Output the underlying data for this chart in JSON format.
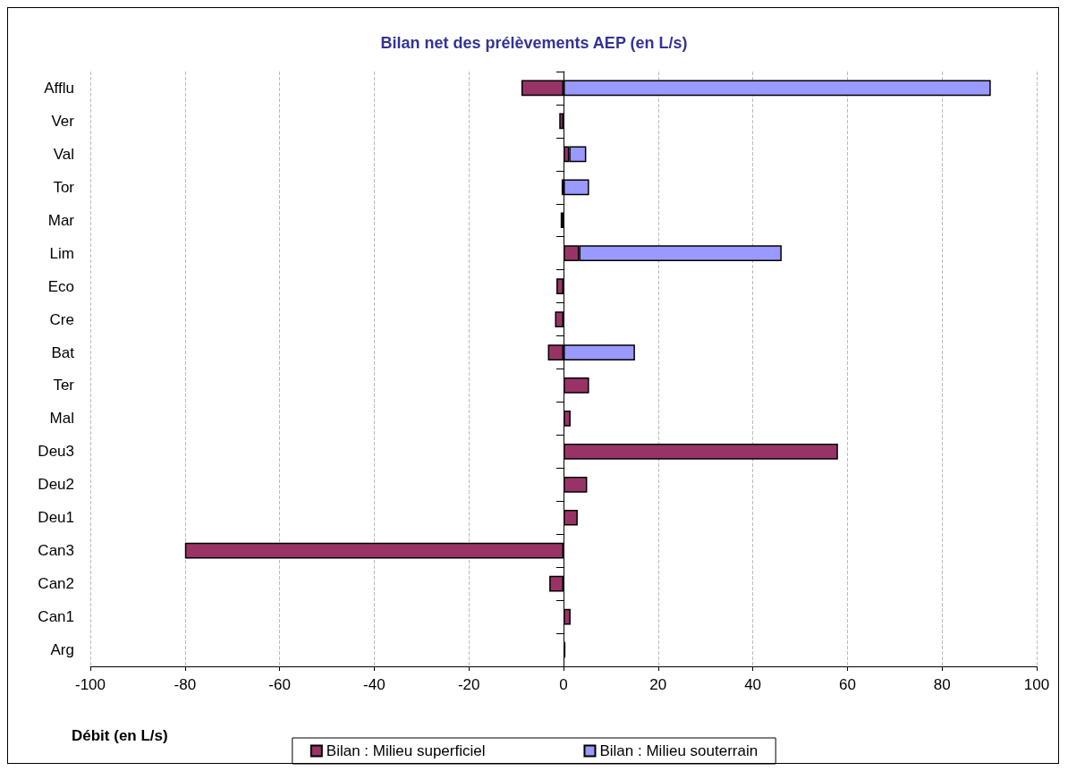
{
  "chart_data": {
    "type": "bar",
    "orientation": "horizontal",
    "stacked": true,
    "title": "Bilan net des prélèvements AEP (en L/s)",
    "xlabel": "Débit (en L/s)",
    "categories": [
      "Afflu",
      "Ver",
      "Val",
      "Tor",
      "Mar",
      "Lim",
      "Eco",
      "Cre",
      "Bat",
      "Ter",
      "Mal",
      "Deu3",
      "Deu2",
      "Deu1",
      "Can3",
      "Can2",
      "Can1",
      "Arg"
    ],
    "series": [
      {
        "name": "Bilan : Milieu superficiel",
        "color": "#993366",
        "values": [
          -8.9,
          -0.9,
          1.2,
          -0.4,
          -0.6,
          3.3,
          -1.5,
          -1.8,
          -3.3,
          5.4,
          1.5,
          58,
          5.0,
          3.0,
          -80,
          -3.0,
          1.5,
          0.4
        ]
      },
      {
        "name": "Bilan : Milieu souterrain",
        "color": "#9999ff",
        "values": [
          90.3,
          null,
          3.6,
          5.4,
          null,
          42.8,
          null,
          null,
          15.1,
          null,
          null,
          null,
          null,
          null,
          null,
          null,
          null,
          null
        ]
      }
    ],
    "xlim": [
      -100,
      100
    ],
    "xticks": [
      -100,
      -80,
      -60,
      -40,
      -20,
      0,
      20,
      40,
      60,
      80,
      100
    ],
    "grid": "x",
    "legend": "bottom"
  }
}
